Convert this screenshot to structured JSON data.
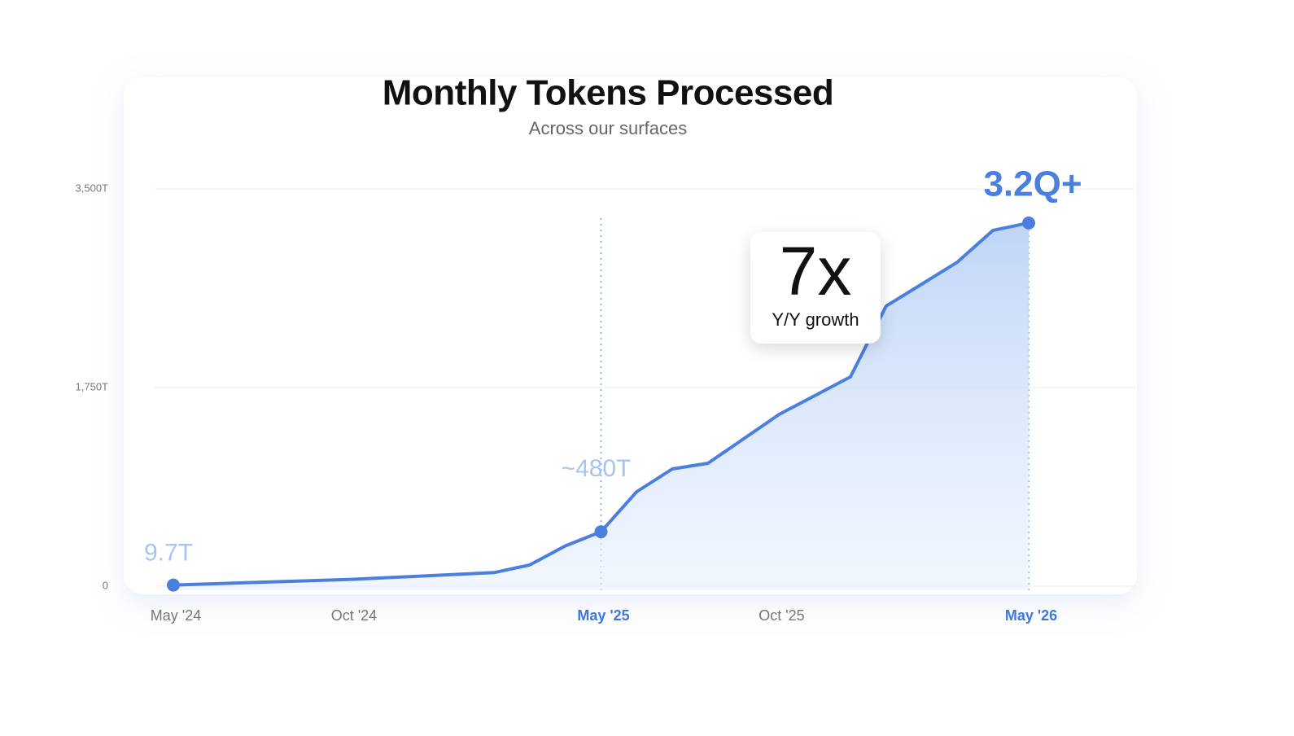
{
  "chart_data": {
    "type": "line",
    "title": "Monthly Tokens Processed",
    "subtitle": "Across our surfaces",
    "categories": [
      "May '24",
      null,
      null,
      null,
      null,
      "Oct '24",
      null,
      null,
      null,
      null,
      null,
      null,
      "May '25",
      null,
      null,
      null,
      null,
      "Oct '25",
      null,
      null,
      null,
      null,
      null,
      null,
      "May '26"
    ],
    "series": [
      {
        "name": "Monthly tokens",
        "color": "#4a7fe0",
        "values": [
          9.7,
          20,
          30,
          40,
          50,
          60,
          75,
          90,
          105,
          120,
          187,
          355,
          480,
          832,
          1033,
          1083,
          1298,
          1514,
          1679,
          1844,
          2468,
          2661,
          2855,
          3135,
          3200
        ],
        "value_labels": [
          "9.7T",
          null,
          null,
          null,
          null,
          null,
          null,
          null,
          null,
          null,
          null,
          null,
          "~480T",
          null,
          null,
          null,
          null,
          null,
          null,
          null,
          null,
          null,
          null,
          null,
          "3.2Q+"
        ]
      }
    ],
    "ylim": [
      0,
      3500
    ],
    "yticks": [
      0,
      {
        "value": 1750,
        "label": "1,750T"
      },
      {
        "value": 3500,
        "label": "3,500T"
      }
    ],
    "grid": true,
    "callout": {
      "headline": "7x",
      "caption": "Y/Y growth"
    }
  }
}
